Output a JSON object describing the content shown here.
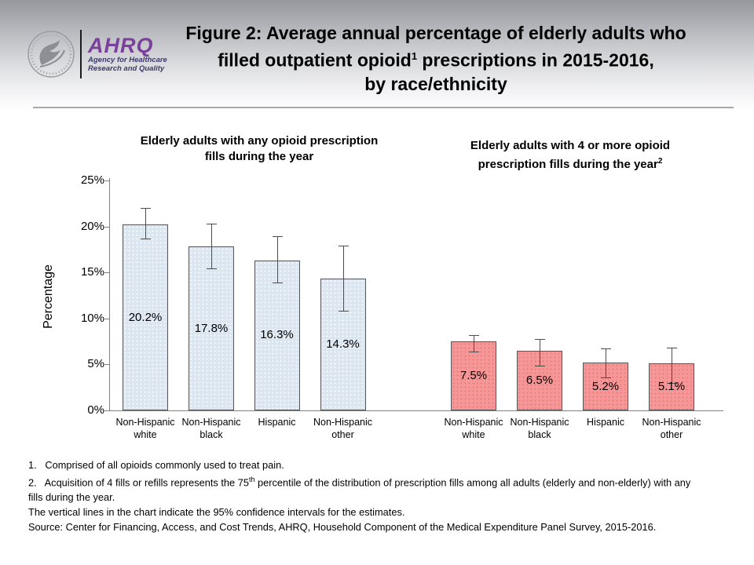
{
  "header": {
    "logo": {
      "ahrq": "AHRQ",
      "agency_line1": "Agency for Healthcare",
      "agency_line2": "Research and Quality",
      "ahrq_color": "#7b3f9c"
    },
    "title": {
      "line1": "Figure 2: Average annual percentage of elderly adults who",
      "line2a": "filled outpatient opioid",
      "line2_sup": "1",
      "line2b": " prescriptions in 2015-2016,",
      "line3": "by race/ethnicity"
    }
  },
  "chart_data": {
    "type": "bar",
    "ylabel": "Percentage",
    "ylim": [
      0,
      25
    ],
    "ytick_labels": [
      "0%",
      "5%",
      "10%",
      "15%",
      "20%",
      "25%"
    ],
    "grid": false,
    "error_bar_meaning": "95% confidence intervals",
    "categories": [
      "Non-Hispanic\nwhite",
      "Non-Hispanic\nblack",
      "Hispanic",
      "Non-Hispanic\nother"
    ],
    "groups": [
      {
        "name": "any-opioid-fills",
        "title_line1": "Elderly adults with any opioid prescription",
        "title_line2": "fills during the year",
        "title_sup": "",
        "bar_color": "#dce6f1",
        "values": [
          20.2,
          17.8,
          16.3,
          14.3
        ],
        "value_labels": [
          "20.2%",
          "17.8%",
          "16.3%",
          "14.3%"
        ],
        "ci_low": [
          18.7,
          15.4,
          13.9,
          10.8
        ],
        "ci_high": [
          22.0,
          20.3,
          18.9,
          17.9
        ]
      },
      {
        "name": "four-or-more-fills",
        "title_line1": "Elderly adults with 4 or more opioid",
        "title_line2": "prescription fills during the year",
        "title_sup": "2",
        "bar_color": "#f79696",
        "values": [
          7.5,
          6.5,
          5.2,
          5.1
        ],
        "value_labels": [
          "7.5%",
          "6.5%",
          "5.2%",
          "5.1%"
        ],
        "ci_low": [
          6.4,
          4.9,
          3.6,
          3.0
        ],
        "ci_high": [
          8.2,
          7.8,
          6.7,
          6.8
        ]
      }
    ]
  },
  "footnotes": {
    "fn1": "1.   Comprised of all opioids commonly used to treat pain.",
    "fn2": {
      "prefix": "2.   Acquisition of 4 fills or refills represents the 75",
      "sup": "th",
      "suffix": " percentile of the distribution of prescription fills among all adults (elderly and non-elderly) with any",
      "line2": "fills during the year."
    },
    "ci_note": "The vertical lines in the chart indicate the 95% confidence intervals for the estimates.",
    "source": "Source: Center for Financing, Access, and Cost Trends, AHRQ, Household Component of the Medical Expenditure Panel Survey, 2015-2016."
  }
}
